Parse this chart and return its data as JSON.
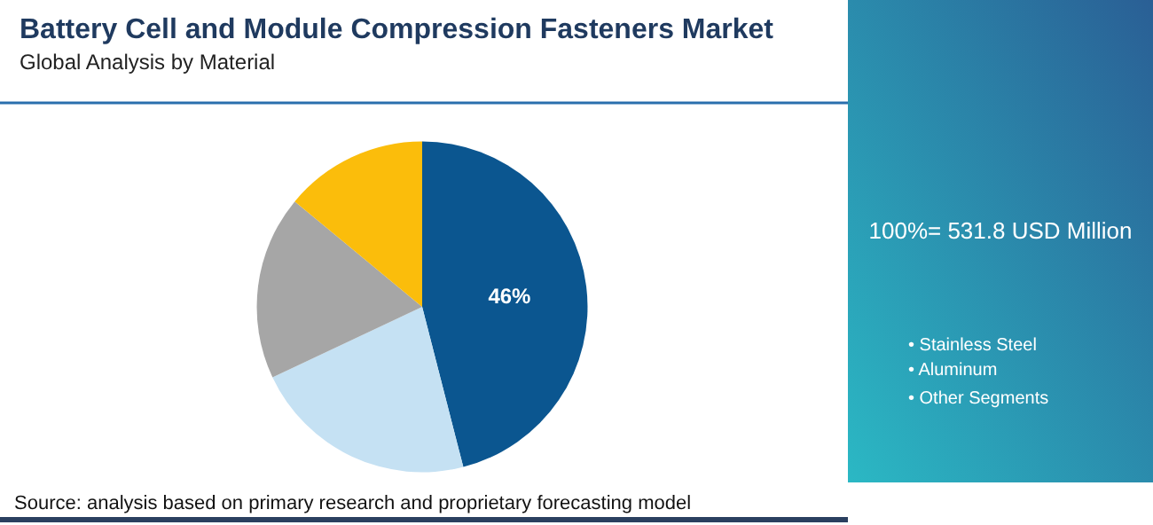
{
  "chart_data": {
    "type": "pie",
    "title": "Battery Cell and Module Compression Fasteners Market",
    "subtitle": "Global Analysis by Material",
    "categories": [
      null,
      null,
      null,
      null
    ],
    "values": [
      46,
      22,
      18,
      14
    ],
    "colors": [
      "#0b5690",
      "#c5e1f3",
      "#a6a6a6",
      "#fbbd0b"
    ],
    "value_labels": [
      "46%",
      null,
      null,
      null
    ],
    "annotations": [
      "100%= 531.8 USD Million",
      "• Stainless Steel",
      "• Aluminum",
      "• Other Segments",
      "Source: analysis based on primary research and proprietary forecasting model"
    ]
  }
}
